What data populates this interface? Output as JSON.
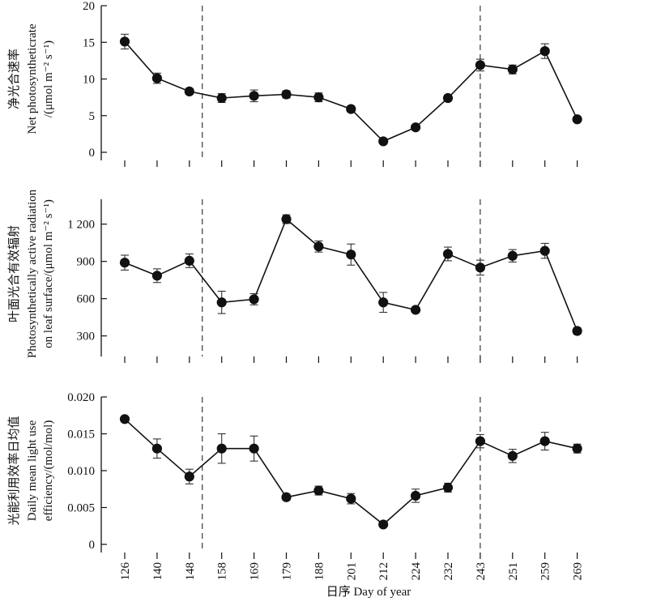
{
  "xaxis": {
    "ticks": [
      126,
      140,
      148,
      158,
      169,
      179,
      188,
      201,
      212,
      224,
      232,
      243,
      251,
      259,
      269
    ],
    "label": "日序 Day of  year"
  },
  "chart_data": [
    {
      "type": "line",
      "ylabel_lines": [
        "净光合速率",
        "Net photosyntheticrate",
        "/(μmol m⁻² s⁻¹)"
      ],
      "ylim": [
        0,
        20
      ],
      "yticks": [
        0,
        5,
        10,
        15,
        20
      ],
      "ytick_labels": [
        "0",
        "5",
        "10",
        "15",
        "20"
      ],
      "vlines": [
        152,
        243
      ],
      "x": [
        126,
        140,
        148,
        158,
        169,
        179,
        188,
        201,
        212,
        224,
        232,
        243,
        251,
        259,
        269
      ],
      "y": [
        15.1,
        10.1,
        8.3,
        7.4,
        7.7,
        7.9,
        7.5,
        5.9,
        1.5,
        3.4,
        7.4,
        11.9,
        11.3,
        13.8,
        4.5
      ],
      "err": [
        1.0,
        0.7,
        0.4,
        0.6,
        0.8,
        0.5,
        0.6,
        0.4,
        0.3,
        0.3,
        0.4,
        0.8,
        0.6,
        1.0,
        0.3
      ]
    },
    {
      "type": "line",
      "ylabel_lines": [
        "叶面光合有效辐射",
        "Photosynthetically active radiation",
        "on leaf surface/(μmol m⁻² s⁻¹)"
      ],
      "ylim": [
        200,
        1400
      ],
      "yticks": [
        300,
        600,
        900,
        1200
      ],
      "ytick_labels": [
        "300",
        "600",
        "900",
        "1 200"
      ],
      "vlines": [
        152,
        243
      ],
      "x": [
        126,
        140,
        148,
        158,
        169,
        179,
        188,
        201,
        212,
        224,
        232,
        243,
        251,
        259,
        269
      ],
      "y": [
        890,
        785,
        905,
        570,
        595,
        1240,
        1020,
        955,
        570,
        510,
        960,
        850,
        945,
        985,
        340
      ],
      "err": [
        60,
        55,
        55,
        90,
        45,
        35,
        45,
        85,
        80,
        18,
        55,
        60,
        50,
        60,
        25
      ]
    },
    {
      "type": "line",
      "ylabel_lines": [
        "光能利用效率日均值",
        "Daily mean light use",
        "efficiency/(mol/mol)"
      ],
      "ylim": [
        0,
        0.02
      ],
      "yticks": [
        0,
        0.005,
        0.01,
        0.015,
        0.02
      ],
      "ytick_labels": [
        "0",
        "0.005",
        "0.010",
        "0.015",
        "0.020"
      ],
      "vlines": [
        152,
        243
      ],
      "x": [
        126,
        140,
        148,
        158,
        169,
        179,
        188,
        201,
        212,
        224,
        232,
        243,
        251,
        259,
        269
      ],
      "y": [
        0.017,
        0.013,
        0.0092,
        0.013,
        0.013,
        0.0064,
        0.0073,
        0.0062,
        0.0027,
        0.0066,
        0.0077,
        0.014,
        0.012,
        0.014,
        0.013
      ],
      "err": [
        0.0003,
        0.0013,
        0.001,
        0.002,
        0.0017,
        0.0004,
        0.0006,
        0.0007,
        0.0003,
        0.0009,
        0.0006,
        0.0009,
        0.0009,
        0.0012,
        0.0006
      ]
    }
  ]
}
